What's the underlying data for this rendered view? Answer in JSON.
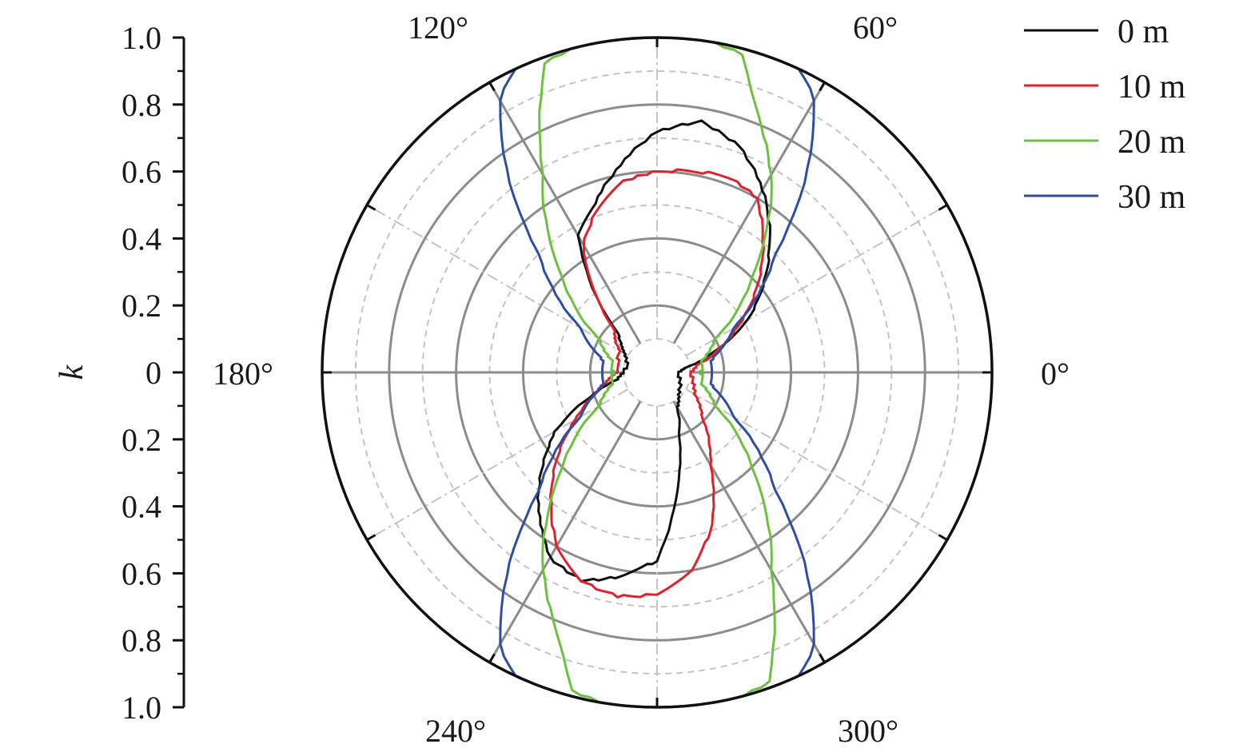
{
  "chart_data": {
    "type": "polar-line",
    "title": "",
    "radial_axis": {
      "label": "k",
      "range": [
        0,
        1.0
      ],
      "major_ticks": [
        0,
        0.2,
        0.4,
        0.6,
        0.8,
        1.0
      ],
      "tick_labels_upper": [
        "0",
        "0.2",
        "0.4",
        "0.6",
        "0.8",
        "1.0"
      ],
      "tick_labels_lower": [
        "0.2",
        "0.4",
        "0.6",
        "0.8",
        "1.0"
      ],
      "minor_rings": [
        0.1,
        0.3,
        0.5,
        0.7,
        0.9
      ]
    },
    "angular_axis": {
      "labels": [
        {
          "deg": 0,
          "text": "0°"
        },
        {
          "deg": 60,
          "text": "60°"
        },
        {
          "deg": 120,
          "text": "120°"
        },
        {
          "deg": 180,
          "text": "180°"
        },
        {
          "deg": 240,
          "text": "240°"
        },
        {
          "deg": 300,
          "text": "300°"
        }
      ],
      "major_spokes_deg": [
        0,
        60,
        120,
        180,
        240,
        300
      ],
      "minor_spokes_deg": [
        30,
        90,
        150,
        210,
        270,
        330
      ]
    },
    "grid": true,
    "legend_position": "top-right",
    "series": [
      {
        "name": "0 m",
        "color": "#111111",
        "theta_deg": [
          0,
          10,
          20,
          30,
          45,
          60,
          70,
          80,
          90,
          100,
          110,
          120,
          135,
          150,
          165,
          180,
          190,
          200,
          210,
          225,
          240,
          250,
          260,
          270,
          280,
          290,
          300,
          315,
          330,
          345,
          360
        ],
        "r": [
          0.06,
          0.09,
          0.18,
          0.31,
          0.47,
          0.63,
          0.72,
          0.76,
          0.72,
          0.63,
          0.54,
          0.47,
          0.16,
          0.11,
          0.09,
          0.1,
          0.12,
          0.21,
          0.35,
          0.5,
          0.64,
          0.66,
          0.62,
          0.56,
          0.35,
          0.19,
          0.12,
          0.09,
          0.08,
          0.07,
          0.06
        ]
      },
      {
        "name": "10 m",
        "color": "#e0202a",
        "theta_deg": [
          0,
          10,
          20,
          30,
          45,
          60,
          70,
          80,
          90,
          100,
          110,
          120,
          135,
          150,
          165,
          180,
          190,
          200,
          210,
          225,
          240,
          250,
          260,
          270,
          280,
          290,
          300,
          315,
          330,
          345,
          360
        ],
        "r": [
          0.1,
          0.12,
          0.19,
          0.28,
          0.44,
          0.6,
          0.62,
          0.61,
          0.6,
          0.58,
          0.52,
          0.44,
          0.18,
          0.13,
          0.12,
          0.12,
          0.15,
          0.2,
          0.28,
          0.44,
          0.6,
          0.66,
          0.68,
          0.66,
          0.6,
          0.48,
          0.32,
          0.19,
          0.13,
          0.11,
          0.1
        ]
      },
      {
        "name": "20 m",
        "color": "#6cc13f",
        "theta_deg": [
          0,
          15,
          30,
          45,
          60,
          70,
          75,
          80,
          85,
          90,
          95,
          100,
          105,
          110,
          120,
          135,
          150,
          165,
          180,
          195,
          210,
          225,
          240,
          250,
          255,
          260,
          265,
          270,
          275,
          280,
          285,
          290,
          300,
          315,
          330,
          345,
          360
        ],
        "r": [
          0.13,
          0.14,
          0.2,
          0.4,
          0.68,
          0.85,
          0.98,
          1.0,
          1.0,
          1.0,
          1.0,
          1.0,
          1.0,
          0.98,
          0.68,
          0.4,
          0.2,
          0.14,
          0.13,
          0.14,
          0.2,
          0.4,
          0.68,
          0.85,
          0.98,
          1.0,
          1.0,
          1.0,
          1.0,
          1.0,
          1.0,
          0.98,
          0.68,
          0.4,
          0.2,
          0.14,
          0.13
        ]
      },
      {
        "name": "30 m",
        "color": "#2e4ea3",
        "theta_deg": [
          0,
          15,
          30,
          45,
          55,
          60,
          65,
          70,
          75,
          80,
          85,
          90,
          95,
          100,
          105,
          110,
          115,
          120,
          125,
          135,
          150,
          165,
          180,
          195,
          210,
          225,
          235,
          240,
          245,
          250,
          255,
          260,
          265,
          270,
          275,
          280,
          285,
          290,
          295,
          300,
          305,
          315,
          330,
          345,
          360
        ],
        "r": [
          0.16,
          0.17,
          0.26,
          0.5,
          0.8,
          0.94,
          1.0,
          1.0,
          1.0,
          1.0,
          1.0,
          1.0,
          1.0,
          1.0,
          1.0,
          1.0,
          1.0,
          0.94,
          0.8,
          0.5,
          0.26,
          0.17,
          0.16,
          0.17,
          0.26,
          0.5,
          0.8,
          0.94,
          1.0,
          1.0,
          1.0,
          1.0,
          1.0,
          1.0,
          1.0,
          1.0,
          1.0,
          1.0,
          1.0,
          0.94,
          0.8,
          0.5,
          0.26,
          0.17,
          0.16
        ]
      }
    ]
  }
}
